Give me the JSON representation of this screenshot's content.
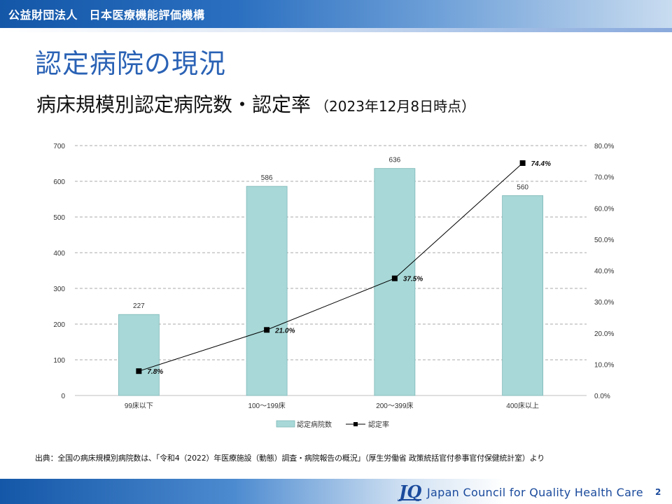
{
  "header": {
    "organization": "公益財団法人　日本医療機能評価機構"
  },
  "page": {
    "title": "認定病院の現況",
    "subtitle": "病床規模別認定病院数・認定率",
    "subtitle_note": "（2023年12月8日時点）"
  },
  "chart_data": {
    "type": "bar",
    "categories": [
      "99床以下",
      "100～199床",
      "200～399床",
      "400床以上"
    ],
    "series": [
      {
        "name": "認定病院数",
        "type": "bar",
        "axis": "left",
        "values": [
          227,
          586,
          636,
          560
        ],
        "labels": [
          "227",
          "586",
          "636",
          "560"
        ],
        "color": "#a8d8d8"
      },
      {
        "name": "認定率",
        "type": "line",
        "axis": "right",
        "values": [
          7.8,
          21.0,
          37.5,
          74.4
        ],
        "labels": [
          "7.8%",
          "21.0%",
          "37.5%",
          "74.4%"
        ],
        "color": "#000000"
      }
    ],
    "title": "",
    "xlabel": "",
    "ylabel": "",
    "y2label": "",
    "ylim": [
      0,
      700
    ],
    "y2lim": [
      0,
      80
    ],
    "yticks": [
      "0",
      "100",
      "200",
      "300",
      "400",
      "500",
      "600",
      "700"
    ],
    "y2ticks": [
      "0.0%",
      "10.0%",
      "20.0%",
      "30.0%",
      "40.0%",
      "50.0%",
      "60.0%",
      "70.0%",
      "80.0%"
    ],
    "grid": true,
    "legend": "bottom"
  },
  "source_note": "出典：全国の病床規模別病院数は、「令和4（2022）年医療施設（動態）調査・病院報告の概況」（厚生労働省 政策統括官付参事官付保健統計室）より",
  "footer": {
    "org_name": "Japan Council for Quality Health Care",
    "page_number": "2"
  }
}
